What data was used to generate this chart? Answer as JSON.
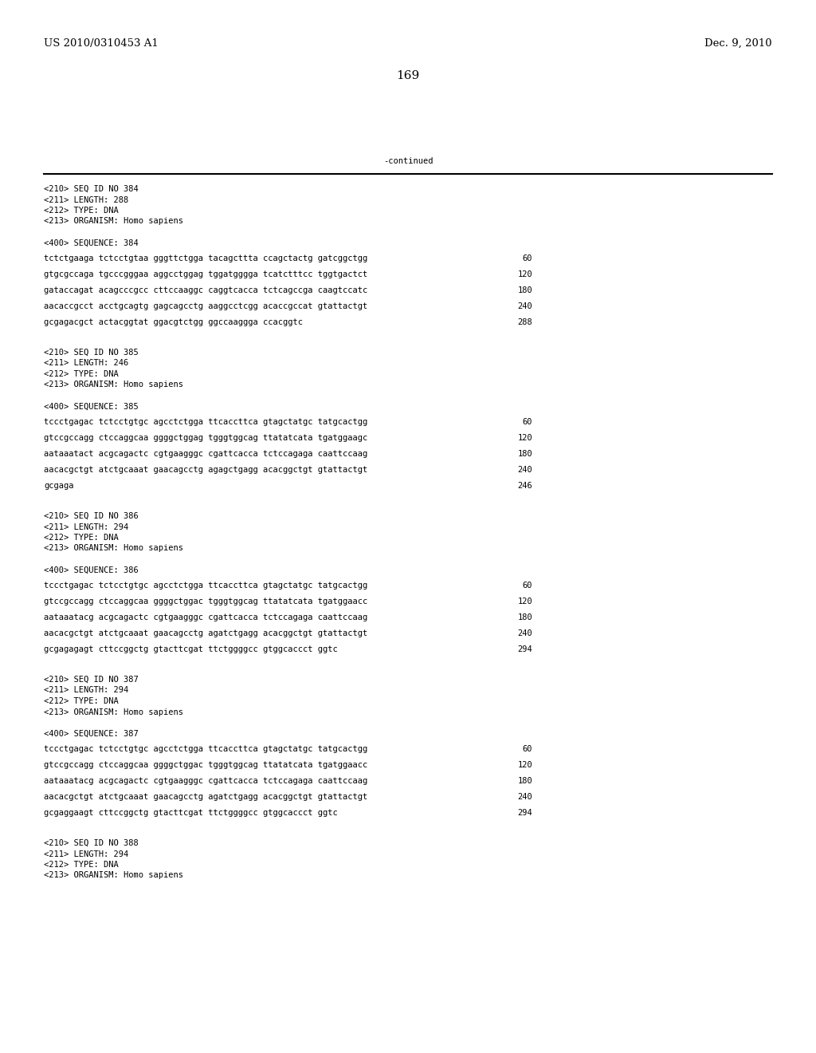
{
  "header_left": "US 2010/0310453 A1",
  "header_right": "Dec. 9, 2010",
  "page_number": "169",
  "continued_text": "-continued",
  "background_color": "#ffffff",
  "text_color": "#000000",
  "font_size_header": 9.5,
  "font_size_mono": 7.5,
  "font_size_page": 11,
  "content": [
    {
      "type": "seq_header",
      "lines": [
        "<210> SEQ ID NO 384",
        "<211> LENGTH: 288",
        "<212> TYPE: DNA",
        "<213> ORGANISM: Homo sapiens"
      ]
    },
    {
      "type": "seq_label",
      "text": "<400> SEQUENCE: 384"
    },
    {
      "type": "seq_data",
      "lines": [
        {
          "seq": "tctctgaaga tctcctgtaa gggttctgga tacagcttta ccagctactg gatcggctgg",
          "num": "60"
        },
        {
          "seq": "gtgcgccaga tgcccgggaa aggcctggag tggatgggga tcatctttcc tggtgactct",
          "num": "120"
        },
        {
          "seq": "gataccagat acagcccgcc cttccaaggc caggtcacca tctcagccga caagtccatc",
          "num": "180"
        },
        {
          "seq": "aacaccgcct acctgcagtg gagcagcctg aaggcctcgg acaccgccat gtattactgt",
          "num": "240"
        },
        {
          "seq": "gcgagacgct actacggtat ggacgtctgg ggccaaggga ccacggtc",
          "num": "288"
        }
      ]
    },
    {
      "type": "seq_header",
      "lines": [
        "<210> SEQ ID NO 385",
        "<211> LENGTH: 246",
        "<212> TYPE: DNA",
        "<213> ORGANISM: Homo sapiens"
      ]
    },
    {
      "type": "seq_label",
      "text": "<400> SEQUENCE: 385"
    },
    {
      "type": "seq_data",
      "lines": [
        {
          "seq": "tccctgagac tctcctgtgc agcctctgga ttcaccttca gtagctatgc tatgcactgg",
          "num": "60"
        },
        {
          "seq": "gtccgccagg ctccaggcaa ggggctggag tgggtggcag ttatatcata tgatggaagc",
          "num": "120"
        },
        {
          "seq": "aataaatact acgcagactc cgtgaagggc cgattcacca tctccagaga caattccaag",
          "num": "180"
        },
        {
          "seq": "aacacgctgt atctgcaaat gaacagcctg agagctgagg acacggctgt gtattactgt",
          "num": "240"
        },
        {
          "seq": "gcgaga",
          "num": "246"
        }
      ]
    },
    {
      "type": "seq_header",
      "lines": [
        "<210> SEQ ID NO 386",
        "<211> LENGTH: 294",
        "<212> TYPE: DNA",
        "<213> ORGANISM: Homo sapiens"
      ]
    },
    {
      "type": "seq_label",
      "text": "<400> SEQUENCE: 386"
    },
    {
      "type": "seq_data",
      "lines": [
        {
          "seq": "tccctgagac tctcctgtgc agcctctgga ttcaccttca gtagctatgc tatgcactgg",
          "num": "60"
        },
        {
          "seq": "gtccgccagg ctccaggcaa ggggctggac tgggtggcag ttatatcata tgatggaacc",
          "num": "120"
        },
        {
          "seq": "aataaatacg acgcagactc cgtgaagggc cgattcacca tctccagaga caattccaag",
          "num": "180"
        },
        {
          "seq": "aacacgctgt atctgcaaat gaacagcctg agatctgagg acacggctgt gtattactgt",
          "num": "240"
        },
        {
          "seq": "gcgagagagt cttccggctg gtacttcgat ttctggggcc gtggcaccct ggtc",
          "num": "294"
        }
      ]
    },
    {
      "type": "seq_header",
      "lines": [
        "<210> SEQ ID NO 387",
        "<211> LENGTH: 294",
        "<212> TYPE: DNA",
        "<213> ORGANISM: Homo sapiens"
      ]
    },
    {
      "type": "seq_label",
      "text": "<400> SEQUENCE: 387"
    },
    {
      "type": "seq_data",
      "lines": [
        {
          "seq": "tccctgagac tctcctgtgc agcctctgga ttcaccttca gtagctatgc tatgcactgg",
          "num": "60"
        },
        {
          "seq": "gtccgccagg ctccaggcaa ggggctggac tgggtggcag ttatatcata tgatggaacc",
          "num": "120"
        },
        {
          "seq": "aataaatacg acgcagactc cgtgaagggc cgattcacca tctccagaga caattccaag",
          "num": "180"
        },
        {
          "seq": "aacacgctgt atctgcaaat gaacagcctg agatctgagg acacggctgt gtattactgt",
          "num": "240"
        },
        {
          "seq": "gcgaggaagt cttccggctg gtacttcgat ttctggggcc gtggcaccct ggtc",
          "num": "294"
        }
      ]
    },
    {
      "type": "seq_header",
      "lines": [
        "<210> SEQ ID NO 388",
        "<211> LENGTH: 294",
        "<212> TYPE: DNA",
        "<213> ORGANISM: Homo sapiens"
      ]
    }
  ]
}
